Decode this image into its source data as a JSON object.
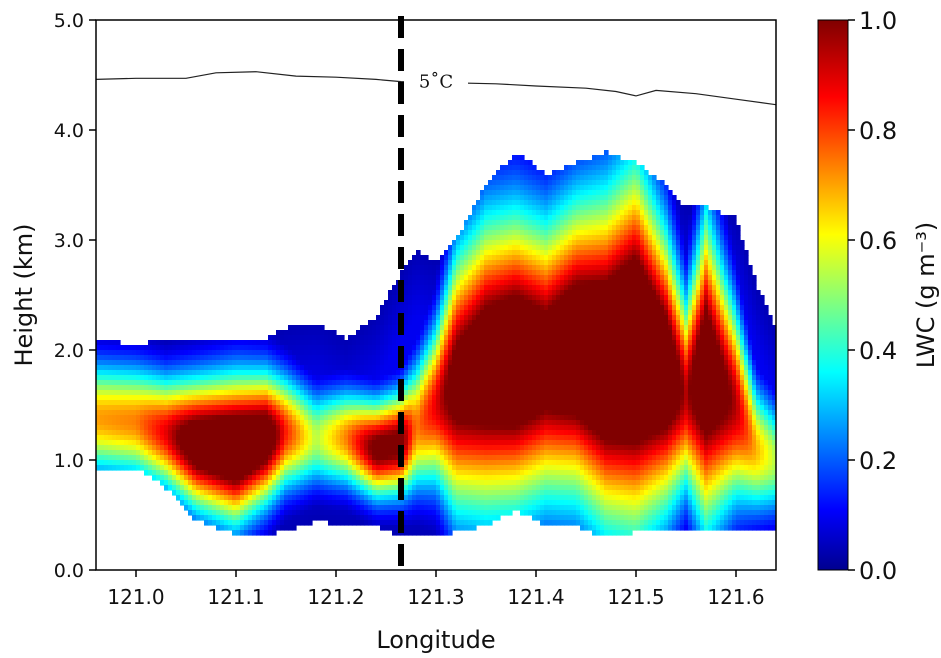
{
  "chart_data": {
    "type": "heatmap",
    "title": "",
    "xlabel": "Longitude",
    "ylabel": "Height (km)",
    "xlim": [
      120.96,
      121.64
    ],
    "ylim": [
      0.0,
      5.0
    ],
    "x_ticks": [
      121.0,
      121.1,
      121.2,
      121.3,
      121.4,
      121.5,
      121.6
    ],
    "x_tick_labels": [
      "121.0",
      "121.1",
      "121.2",
      "121.3",
      "121.4",
      "121.5",
      "121.6"
    ],
    "y_ticks": [
      0.0,
      1.0,
      2.0,
      3.0,
      4.0,
      5.0
    ],
    "y_tick_labels": [
      "0.0",
      "1.0",
      "2.0",
      "3.0",
      "4.0",
      "5.0"
    ],
    "colorbar": {
      "label": "LWC (g m⁻³)",
      "range": [
        0.0,
        1.0
      ],
      "ticks": [
        0.0,
        0.2,
        0.4,
        0.6,
        0.8,
        1.0
      ],
      "tick_labels": [
        "0.0",
        "0.2",
        "0.4",
        "0.6",
        "0.8",
        "1.0"
      ],
      "colormap": "jet"
    },
    "vertical_line": {
      "x": 121.265,
      "style": "dashed",
      "color": "#000000"
    },
    "isotherm": {
      "label": "5˚C",
      "label_x": 121.3,
      "label_y": 4.44,
      "points": [
        [
          120.96,
          4.46
        ],
        [
          121.0,
          4.47
        ],
        [
          121.05,
          4.47
        ],
        [
          121.08,
          4.52
        ],
        [
          121.12,
          4.53
        ],
        [
          121.16,
          4.49
        ],
        [
          121.2,
          4.48
        ],
        [
          121.24,
          4.46
        ],
        [
          121.265,
          4.44
        ],
        [
          121.36,
          4.42
        ],
        [
          121.4,
          4.4
        ],
        [
          121.45,
          4.38
        ],
        [
          121.48,
          4.35
        ],
        [
          121.5,
          4.31
        ],
        [
          121.52,
          4.36
        ],
        [
          121.56,
          4.33
        ],
        [
          121.6,
          4.28
        ],
        [
          121.64,
          4.23
        ]
      ]
    },
    "field_profile": {
      "description_fields": [
        "x",
        "cloud_base_km",
        "cloud_top_km",
        "max_lwc",
        "core_center_km",
        "core_half_thickness_km"
      ],
      "rows": [
        [
          120.96,
          0.93,
          2.1,
          0.72,
          1.38,
          0.35
        ],
        [
          121.0,
          0.93,
          2.05,
          0.75,
          1.35,
          0.35
        ],
        [
          121.03,
          0.75,
          2.1,
          0.9,
          1.25,
          0.35
        ],
        [
          121.06,
          0.45,
          2.1,
          1.15,
          1.15,
          0.4
        ],
        [
          121.1,
          0.33,
          2.1,
          1.25,
          1.1,
          0.45
        ],
        [
          121.13,
          0.33,
          2.1,
          1.15,
          1.2,
          0.4
        ],
        [
          121.15,
          0.35,
          2.2,
          0.85,
          1.25,
          0.35
        ],
        [
          121.18,
          0.45,
          2.25,
          0.55,
          1.2,
          0.3
        ],
        [
          121.21,
          0.4,
          2.1,
          0.75,
          1.2,
          0.3
        ],
        [
          121.24,
          0.4,
          2.3,
          1.05,
          1.1,
          0.3
        ],
        [
          121.265,
          0.3,
          2.7,
          1.05,
          1.15,
          0.32
        ],
        [
          121.28,
          0.3,
          2.9,
          0.75,
          1.3,
          0.4
        ],
        [
          121.3,
          0.3,
          2.8,
          0.9,
          1.5,
          0.5
        ],
        [
          121.32,
          0.35,
          3.0,
          1.1,
          1.7,
          0.8
        ],
        [
          121.35,
          0.4,
          3.5,
          1.2,
          1.85,
          0.9
        ],
        [
          121.38,
          0.55,
          3.8,
          1.25,
          1.9,
          0.9
        ],
        [
          121.41,
          0.4,
          3.6,
          1.15,
          1.9,
          0.85
        ],
        [
          121.44,
          0.4,
          3.7,
          1.25,
          2.0,
          0.9
        ],
        [
          121.47,
          0.3,
          3.8,
          1.3,
          1.9,
          1.0
        ],
        [
          121.5,
          0.35,
          3.7,
          1.35,
          2.0,
          1.1
        ],
        [
          121.53,
          0.35,
          3.5,
          1.2,
          1.8,
          0.85
        ],
        [
          121.55,
          0.35,
          3.3,
          0.95,
          1.6,
          0.6
        ],
        [
          121.57,
          0.35,
          3.3,
          1.2,
          1.8,
          0.95
        ],
        [
          121.6,
          0.35,
          3.2,
          0.95,
          1.5,
          0.6
        ],
        [
          121.62,
          0.35,
          2.6,
          0.7,
          1.1,
          0.4
        ],
        [
          121.64,
          0.35,
          2.2,
          0.55,
          1.0,
          0.35
        ]
      ]
    }
  }
}
